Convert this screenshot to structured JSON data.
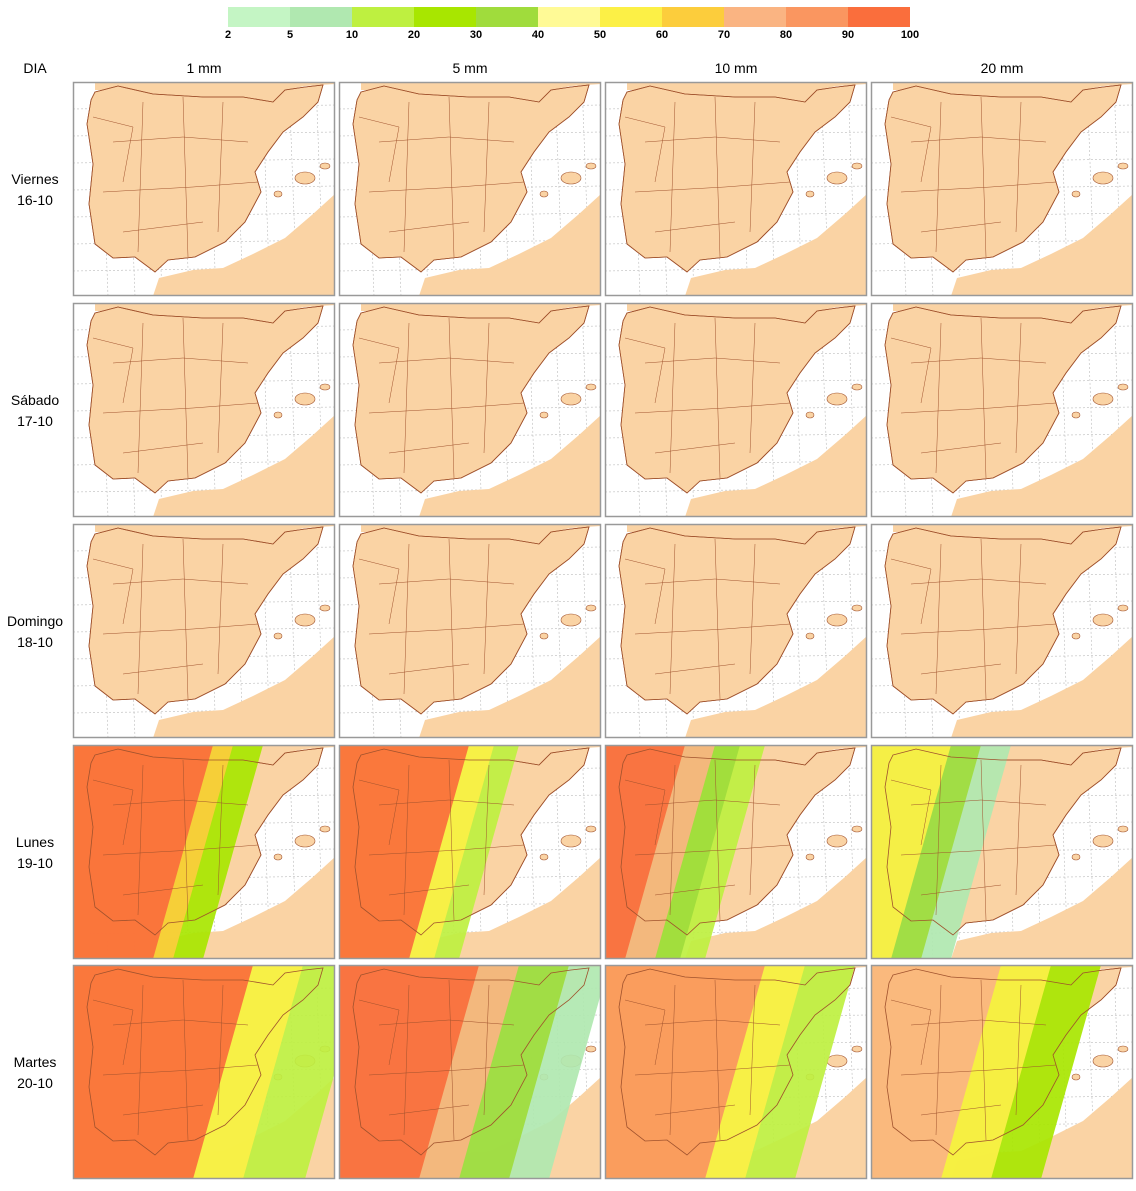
{
  "legend": {
    "colors": [
      "#c4f5c4",
      "#b0e8b0",
      "#bef040",
      "#a8e600",
      "#a0dc3c",
      "#fffa96",
      "#fcf046",
      "#fccd3c",
      "#fab482",
      "#fa9660",
      "#fa6e3c"
    ],
    "labels": [
      2,
      5,
      10,
      20,
      30,
      40,
      50,
      60,
      70,
      80,
      90,
      100
    ]
  },
  "header": {
    "corner": "DIA",
    "columns": [
      "1 mm",
      "5 mm",
      "10 mm",
      "20 mm"
    ]
  },
  "rows": [
    {
      "day": "Viernes",
      "date": "16-10"
    },
    {
      "day": "Sábado",
      "date": "17-10"
    },
    {
      "day": "Domingo",
      "date": "18-10"
    },
    {
      "day": "Lunes",
      "date": "19-10"
    },
    {
      "day": "Martes",
      "date": "20-10"
    }
  ]
}
